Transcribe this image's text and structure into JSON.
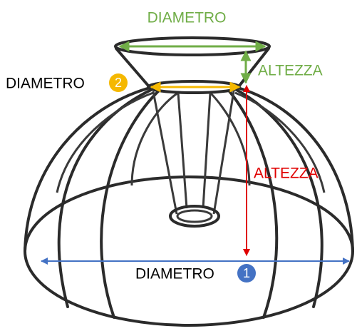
{
  "labels": {
    "top_diameter": "DIAMETRO",
    "top_height": "ALTEZZA",
    "neck_diameter": "DIAMETRO",
    "neck_badge": "2",
    "body_height": "ALTEZZA",
    "base_diameter": "DIAMETRO",
    "base_badge": "1"
  }
}
